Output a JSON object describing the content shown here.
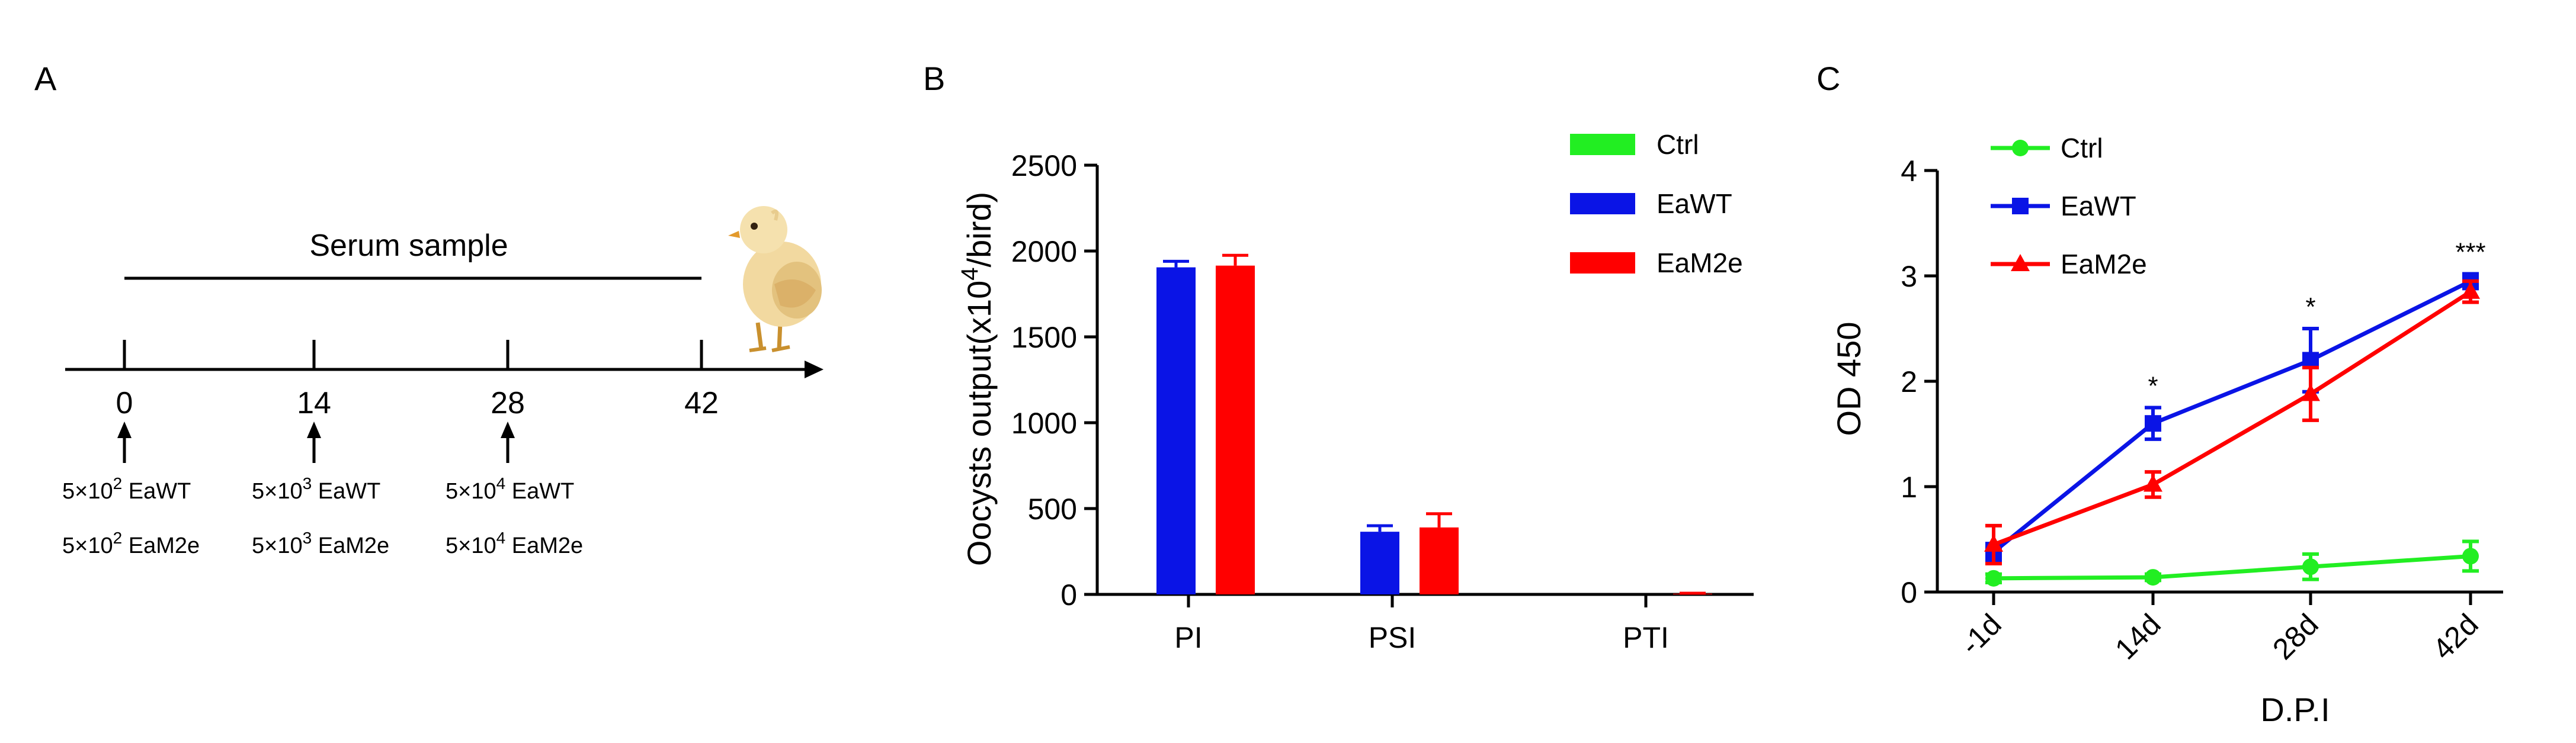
{
  "panel_a": {
    "label": "A",
    "serum_label": "Serum sample",
    "timepoints": [
      "0",
      "14",
      "28",
      "42"
    ],
    "doses": [
      {
        "wt_base": "5×10",
        "wt_exp": "2",
        "wt_tail": " EaWT",
        "m2e_base": "5×10",
        "m2e_exp": "2",
        "m2e_tail": " EaM2e"
      },
      {
        "wt_base": "5×10",
        "wt_exp": "3",
        "wt_tail": " EaWT",
        "m2e_base": "5×10",
        "m2e_exp": "3",
        "m2e_tail": " EaM2e"
      },
      {
        "wt_base": "5×10",
        "wt_exp": "4",
        "wt_tail": " EaWT",
        "m2e_base": "5×10",
        "m2e_exp": "4",
        "m2e_tail": " EaM2e"
      }
    ],
    "image": "chick-illustration"
  },
  "chart_data": [
    {
      "panel": "B",
      "type": "bar",
      "categories": [
        "PI",
        "PSI",
        "PTI"
      ],
      "ylabel_pre": "Oocysts output(x10",
      "ylabel_sup": "4",
      "ylabel_post": "/bird)",
      "xlabel": "",
      "ylim": [
        0,
        2500
      ],
      "yticks": [
        0,
        500,
        1000,
        1500,
        2000,
        2500
      ],
      "legend_position": "top-right",
      "legend": [
        "Ctrl",
        "EaWT",
        "EaM2e"
      ],
      "colors": {
        "Ctrl": "#22ee22",
        "EaWT": "#0a14e6",
        "EaM2e": "#ff0000"
      },
      "series": [
        {
          "name": "Ctrl",
          "values": [
            0,
            0,
            0
          ],
          "errors": [
            0,
            0,
            0
          ]
        },
        {
          "name": "EaWT",
          "values": [
            1905,
            365,
            0
          ],
          "errors": [
            35,
            35,
            0
          ]
        },
        {
          "name": "EaM2e",
          "values": [
            1915,
            390,
            4
          ],
          "errors": [
            60,
            80,
            3
          ]
        }
      ]
    },
    {
      "panel": "C",
      "type": "line",
      "x": [
        "-1d",
        "14d",
        "28d",
        "42d"
      ],
      "xlabel": "D.P.I",
      "ylabel": "OD 450",
      "ylim": [
        0,
        4
      ],
      "yticks": [
        0,
        1,
        2,
        3,
        4
      ],
      "legend_position": "top-left",
      "legend": [
        "Ctrl",
        "EaWT",
        "EaM2e"
      ],
      "colors": {
        "Ctrl": "#22ee22",
        "EaWT": "#0a14e6",
        "EaM2e": "#ff0000"
      },
      "markers": {
        "Ctrl": "circle",
        "EaWT": "square",
        "EaM2e": "triangle"
      },
      "series": [
        {
          "name": "Ctrl",
          "values": [
            0.13,
            0.14,
            0.24,
            0.34
          ],
          "errors": [
            0.04,
            0.03,
            0.12,
            0.14
          ]
        },
        {
          "name": "EaWT",
          "values": [
            0.38,
            1.6,
            2.2,
            2.95
          ],
          "errors": [
            0.08,
            0.15,
            0.3,
            0.07
          ]
        },
        {
          "name": "EaM2e",
          "values": [
            0.45,
            1.02,
            1.88,
            2.85
          ],
          "errors": [
            0.18,
            0.12,
            0.25,
            0.1
          ]
        }
      ],
      "annotations": [
        "",
        "*",
        "*",
        "***"
      ]
    }
  ]
}
